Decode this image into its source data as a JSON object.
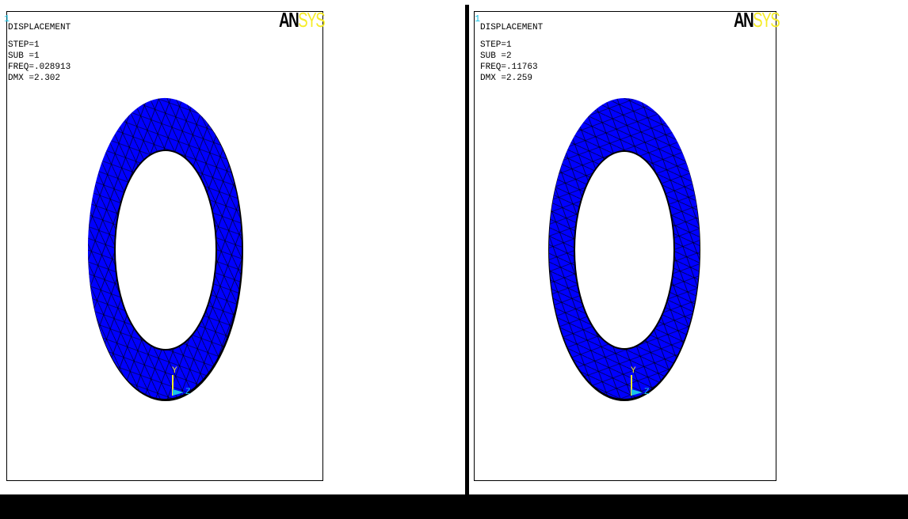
{
  "logo": {
    "an": "AN",
    "sys": "SYS"
  },
  "colors": {
    "mesh_fill": "#0000ff",
    "mesh_lines": "#000000",
    "window_number": "#19c3e8",
    "logo_sys": "#f5ec28",
    "triad_y": "#f5ec28",
    "triad_z": "#19c3e8"
  },
  "panels": [
    {
      "window_number": "1",
      "title": "DISPLACEMENT",
      "step": "STEP=1",
      "sub": "SUB =1",
      "freq": "FREQ=.028913",
      "dmx": "DMX =2.302",
      "triad": {
        "y_label": "Y",
        "z_label": "Z"
      }
    },
    {
      "window_number": "1",
      "title": "DISPLACEMENT",
      "step": "STEP=1",
      "sub": "SUB =2",
      "freq": "FREQ=.11763",
      "dmx": "DMX =2.259",
      "triad": {
        "y_label": "Y",
        "z_label": "Z"
      }
    }
  ]
}
